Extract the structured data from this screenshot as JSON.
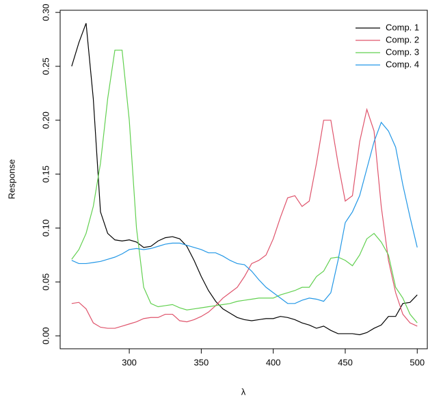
{
  "chart_data": {
    "type": "line",
    "xlabel": "λ",
    "ylabel": "Response",
    "x": [
      260,
      265,
      270,
      275,
      280,
      285,
      290,
      295,
      300,
      305,
      310,
      315,
      320,
      325,
      330,
      335,
      340,
      345,
      350,
      355,
      360,
      365,
      370,
      375,
      380,
      385,
      390,
      395,
      400,
      405,
      410,
      415,
      420,
      425,
      430,
      435,
      440,
      445,
      450,
      455,
      460,
      465,
      470,
      475,
      480,
      485,
      490,
      495,
      500
    ],
    "series": [
      {
        "name": "Comp. 1",
        "color": "#000000",
        "values": [
          0.25,
          0.272,
          0.29,
          0.22,
          0.115,
          0.095,
          0.089,
          0.088,
          0.089,
          0.087,
          0.082,
          0.083,
          0.088,
          0.091,
          0.092,
          0.09,
          0.083,
          0.07,
          0.055,
          0.042,
          0.032,
          0.025,
          0.021,
          0.017,
          0.015,
          0.014,
          0.015,
          0.016,
          0.016,
          0.018,
          0.017,
          0.015,
          0.012,
          0.01,
          0.007,
          0.009,
          0.005,
          0.002,
          0.002,
          0.002,
          0.001,
          0.003,
          0.007,
          0.01,
          0.018,
          0.018,
          0.03,
          0.031,
          0.038
        ]
      },
      {
        "name": "Comp. 2",
        "color": "#DF536B",
        "values": [
          0.03,
          0.031,
          0.025,
          0.012,
          0.008,
          0.007,
          0.007,
          0.009,
          0.011,
          0.013,
          0.016,
          0.017,
          0.017,
          0.02,
          0.02,
          0.014,
          0.013,
          0.015,
          0.018,
          0.022,
          0.028,
          0.035,
          0.04,
          0.045,
          0.055,
          0.067,
          0.07,
          0.075,
          0.09,
          0.11,
          0.128,
          0.13,
          0.12,
          0.125,
          0.16,
          0.2,
          0.2,
          0.16,
          0.125,
          0.13,
          0.18,
          0.21,
          0.19,
          0.12,
          0.07,
          0.04,
          0.02,
          0.012,
          0.009
        ]
      },
      {
        "name": "Comp. 3",
        "color": "#61D04F",
        "values": [
          0.071,
          0.08,
          0.095,
          0.12,
          0.16,
          0.22,
          0.265,
          0.265,
          0.2,
          0.1,
          0.045,
          0.03,
          0.027,
          0.028,
          0.029,
          0.026,
          0.024,
          0.025,
          0.026,
          0.027,
          0.028,
          0.029,
          0.03,
          0.032,
          0.033,
          0.034,
          0.035,
          0.035,
          0.035,
          0.038,
          0.04,
          0.042,
          0.045,
          0.045,
          0.055,
          0.06,
          0.072,
          0.073,
          0.07,
          0.065,
          0.075,
          0.09,
          0.095,
          0.087,
          0.075,
          0.045,
          0.035,
          0.02,
          0.012
        ]
      },
      {
        "name": "Comp. 4",
        "color": "#2297E6",
        "values": [
          0.07,
          0.067,
          0.067,
          0.068,
          0.069,
          0.071,
          0.073,
          0.076,
          0.08,
          0.081,
          0.08,
          0.081,
          0.083,
          0.085,
          0.086,
          0.086,
          0.084,
          0.082,
          0.08,
          0.077,
          0.077,
          0.074,
          0.07,
          0.067,
          0.066,
          0.06,
          0.052,
          0.045,
          0.04,
          0.035,
          0.03,
          0.03,
          0.033,
          0.035,
          0.034,
          0.032,
          0.04,
          0.07,
          0.105,
          0.115,
          0.13,
          0.155,
          0.18,
          0.198,
          0.19,
          0.175,
          0.14,
          0.11,
          0.082
        ]
      }
    ],
    "xlim": [
      252,
      507
    ],
    "ylim": [
      -0.012,
      0.302
    ],
    "xticks": [
      300,
      350,
      400,
      450,
      500
    ],
    "yticks": [
      {
        "value": 0,
        "label": "0.00"
      },
      0.05,
      {
        "value": 0.1,
        "label": "0.10"
      },
      0.15,
      {
        "value": 0.2,
        "label": "0.20"
      },
      0.25,
      {
        "value": 0.3,
        "label": "0.30"
      }
    ],
    "legend": "top-right"
  }
}
